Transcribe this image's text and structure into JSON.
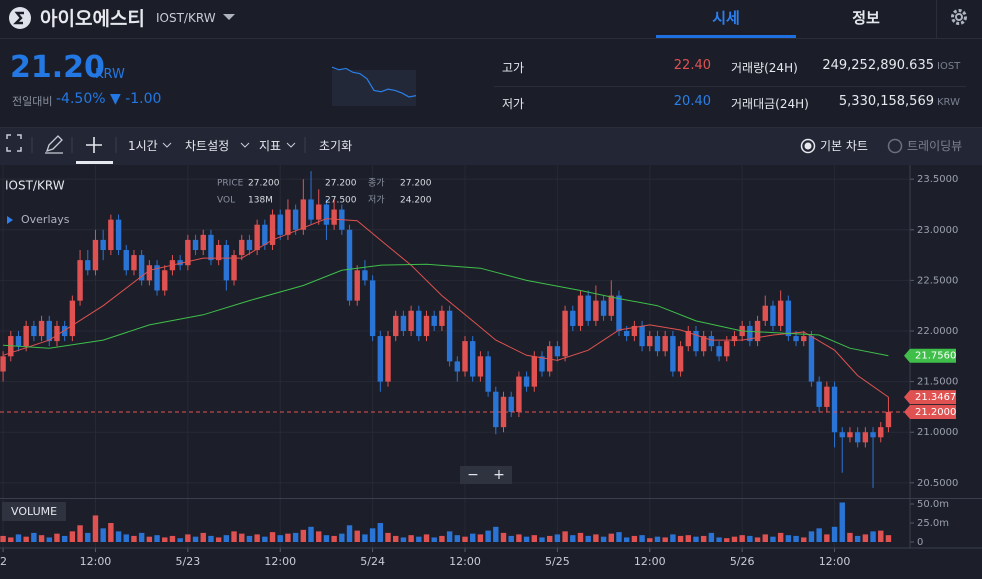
{
  "header": {
    "name": "아이오에스티",
    "pair": "IOST/KRW",
    "tabs": [
      "시세",
      "정보"
    ]
  },
  "summary": {
    "price": "21.20",
    "currency": "KRW",
    "change_label": "전일대비",
    "change_pct": "-4.50%",
    "change_abs": "▼ -1.00"
  },
  "sparkline": {
    "values": [
      23.4,
      23.2,
      23.3,
      23.0,
      22.9,
      22.5,
      21.6,
      21.5,
      21.7,
      21.6,
      21.4,
      21.1,
      21.2
    ],
    "ylim": [
      20.4,
      23.8
    ]
  },
  "stats": {
    "rows": [
      [
        "고가",
        "22.40",
        "거래량(24H)",
        "249,252,890.635",
        "IOST"
      ],
      [
        "저가",
        "20.40",
        "거래대금(24H)",
        "5,330,158,569",
        "KRW"
      ]
    ]
  },
  "toolbar": {
    "interval": "1시간",
    "settings": "차트설정",
    "indicators": "지표",
    "reset": "초기화",
    "basic": "기본 차트",
    "tradingview": "트레이딩뷰"
  },
  "chart_data": {
    "type": "candlestick",
    "pair": "IOST/KRW",
    "overlays": "Overlays",
    "volume_label": "VOLUME",
    "info": [
      [
        "PRICE",
        "27.200",
        "27.200",
        "종가",
        "27.200"
      ],
      [
        "VOL",
        "138M",
        "27.500",
        "저가",
        "24.200"
      ]
    ],
    "zoom": [
      "−",
      "+"
    ],
    "up_color": "#e05252",
    "down_color": "#2a74d5",
    "xlim": [
      -0.4,
      117.8
    ],
    "xticks": [
      {
        "value": 0,
        "label": "2"
      },
      {
        "value": 12,
        "label": "12:00"
      },
      {
        "value": 24,
        "label": "5/23"
      },
      {
        "value": 36,
        "label": "12:00"
      },
      {
        "value": 48,
        "label": "5/24"
      },
      {
        "value": 60,
        "label": "12:00"
      },
      {
        "value": 72,
        "label": "5/25"
      },
      {
        "value": 84,
        "label": "12:00"
      },
      {
        "value": 96,
        "label": "5/26"
      },
      {
        "value": 108,
        "label": "12:00"
      }
    ],
    "ylim": [
      20.36,
      23.64
    ],
    "yticks": [
      {
        "value": 20.5,
        "label": "20.5000"
      },
      {
        "value": 21,
        "label": "21.0000"
      },
      {
        "value": 21.5,
        "label": "21.5000"
      },
      {
        "value": 22,
        "label": "22.0000"
      },
      {
        "value": 22.5,
        "label": "22.5000"
      },
      {
        "value": 23,
        "label": "23.0000"
      },
      {
        "value": 23.5,
        "label": "23.5000"
      }
    ],
    "vol_ylim": [
      -7.9,
      55.3
    ],
    "vol_yticks": [
      0,
      {
        "value": 25,
        "label": "25.0m"
      },
      {
        "value": 50,
        "label": "50.0m"
      }
    ],
    "price_labels": [
      {
        "value": 21.756,
        "label": "21.7560",
        "color": "#3fbf4a"
      },
      {
        "value": 21.3467,
        "label": "21.3467",
        "color": "#e05252"
      },
      {
        "value": 21.2,
        "label": "21.2000",
        "color": "#e05252"
      }
    ],
    "series": [
      {
        "color": "#e0524f",
        "x": [
          0,
          6,
          13,
          19,
          26,
          31,
          35,
          39,
          42,
          46,
          49,
          53,
          57,
          61,
          64,
          68,
          72,
          76,
          80,
          84,
          88,
          92,
          96,
          100,
          104,
          108,
          111,
          115
        ],
        "values": [
          21.76,
          21.91,
          22.25,
          22.6,
          22.72,
          22.72,
          22.9,
          23.02,
          23.11,
          23.09,
          22.9,
          22.65,
          22.35,
          22.1,
          21.91,
          21.76,
          21.71,
          21.81,
          22.01,
          22.06,
          22.01,
          21.91,
          21.91,
          21.96,
          21.99,
          21.81,
          21.56,
          21.3467
        ]
      },
      {
        "color": "#3fbf4a",
        "x": [
          0,
          6,
          13,
          19,
          26,
          32,
          39,
          44,
          49,
          55,
          62,
          68,
          75,
          80,
          85,
          90,
          96,
          101,
          106,
          110,
          115
        ],
        "values": [
          21.86,
          21.83,
          21.91,
          22.06,
          22.16,
          22.3,
          22.45,
          22.6,
          22.65,
          22.66,
          22.62,
          22.5,
          22.4,
          22.32,
          22.25,
          22.1,
          22.0,
          21.98,
          21.96,
          21.83,
          21.756
        ]
      }
    ],
    "candles": [
      [
        21.6,
        21.8,
        21.5,
        21.75
      ],
      [
        21.75,
        22.0,
        21.7,
        21.95
      ],
      [
        21.95,
        22.0,
        21.8,
        21.85
      ],
      [
        21.85,
        22.1,
        21.8,
        22.05
      ],
      [
        22.05,
        22.1,
        21.9,
        21.95
      ],
      [
        21.95,
        22.15,
        21.9,
        22.1
      ],
      [
        22.1,
        22.15,
        21.85,
        21.9
      ],
      [
        21.9,
        22.1,
        21.85,
        22.05
      ],
      [
        22.05,
        22.1,
        21.9,
        21.95
      ],
      [
        21.95,
        22.35,
        21.9,
        22.3
      ],
      [
        22.3,
        22.8,
        22.25,
        22.7
      ],
      [
        22.7,
        22.8,
        22.55,
        22.6
      ],
      [
        22.6,
        23.0,
        22.55,
        22.9
      ],
      [
        22.9,
        23.0,
        22.7,
        22.8
      ],
      [
        22.8,
        23.15,
        22.75,
        23.1
      ],
      [
        23.1,
        23.15,
        22.75,
        22.8
      ],
      [
        22.8,
        22.85,
        22.55,
        22.6
      ],
      [
        22.6,
        22.8,
        22.55,
        22.75
      ],
      [
        22.75,
        22.8,
        22.45,
        22.5
      ],
      [
        22.5,
        22.7,
        22.45,
        22.65
      ],
      [
        22.65,
        22.7,
        22.35,
        22.4
      ],
      [
        22.4,
        22.65,
        22.35,
        22.6
      ],
      [
        22.6,
        22.75,
        22.55,
        22.7
      ],
      [
        22.7,
        22.75,
        22.6,
        22.65
      ],
      [
        22.65,
        22.95,
        22.6,
        22.9
      ],
      [
        22.9,
        22.95,
        22.75,
        22.8
      ],
      [
        22.8,
        23.0,
        22.75,
        22.95
      ],
      [
        22.95,
        23.0,
        22.65,
        22.7
      ],
      [
        22.7,
        22.9,
        22.65,
        22.85
      ],
      [
        22.85,
        22.9,
        22.4,
        22.5
      ],
      [
        22.5,
        22.8,
        22.45,
        22.75
      ],
      [
        22.75,
        22.95,
        22.7,
        22.9
      ],
      [
        22.9,
        22.95,
        22.75,
        22.8
      ],
      [
        22.8,
        23.1,
        22.75,
        23.05
      ],
      [
        23.05,
        23.1,
        22.8,
        22.85
      ],
      [
        22.85,
        23.2,
        22.8,
        23.15
      ],
      [
        23.15,
        23.2,
        22.9,
        22.95
      ],
      [
        22.95,
        23.3,
        22.9,
        23.2
      ],
      [
        23.2,
        23.25,
        22.95,
        23.0
      ],
      [
        23.0,
        23.5,
        22.95,
        23.3
      ],
      [
        23.3,
        23.58,
        23.05,
        23.1
      ],
      [
        23.1,
        23.4,
        23.05,
        23.25
      ],
      [
        23.25,
        23.3,
        22.9,
        23.05
      ],
      [
        23.05,
        23.3,
        23.0,
        23.2
      ],
      [
        23.2,
        23.25,
        22.95,
        23.0
      ],
      [
        23.0,
        23.05,
        22.25,
        22.3
      ],
      [
        22.3,
        22.65,
        22.25,
        22.6
      ],
      [
        22.6,
        22.7,
        22.45,
        22.5
      ],
      [
        22.5,
        22.55,
        21.9,
        21.95
      ],
      [
        21.95,
        22.0,
        21.4,
        21.5
      ],
      [
        21.5,
        22.0,
        21.45,
        21.95
      ],
      [
        21.95,
        22.2,
        21.9,
        22.15
      ],
      [
        22.15,
        22.2,
        21.95,
        22.0
      ],
      [
        22.0,
        22.25,
        21.95,
        22.2
      ],
      [
        22.2,
        22.25,
        21.9,
        21.95
      ],
      [
        21.95,
        22.2,
        21.9,
        22.15
      ],
      [
        22.15,
        22.2,
        22.0,
        22.05
      ],
      [
        22.05,
        22.25,
        22.0,
        22.2
      ],
      [
        22.2,
        22.25,
        21.65,
        21.7
      ],
      [
        21.7,
        21.75,
        21.5,
        21.6
      ],
      [
        21.6,
        21.95,
        21.55,
        21.9
      ],
      [
        21.9,
        21.95,
        21.5,
        21.55
      ],
      [
        21.55,
        21.8,
        21.5,
        21.75
      ],
      [
        21.75,
        21.8,
        21.35,
        21.4
      ],
      [
        21.4,
        21.45,
        20.98,
        21.05
      ],
      [
        21.05,
        21.4,
        21.0,
        21.35
      ],
      [
        21.35,
        21.4,
        21.15,
        21.2
      ],
      [
        21.2,
        21.6,
        21.15,
        21.55
      ],
      [
        21.55,
        21.6,
        21.4,
        21.45
      ],
      [
        21.45,
        21.8,
        21.4,
        21.75
      ],
      [
        21.75,
        21.8,
        21.55,
        21.6
      ],
      [
        21.6,
        21.9,
        21.55,
        21.85
      ],
      [
        21.85,
        21.9,
        21.7,
        21.75
      ],
      [
        21.75,
        22.25,
        21.7,
        22.2
      ],
      [
        22.2,
        22.25,
        22.0,
        22.05
      ],
      [
        22.05,
        22.4,
        22.0,
        22.35
      ],
      [
        22.35,
        22.4,
        22.05,
        22.1
      ],
      [
        22.1,
        22.45,
        22.05,
        22.3
      ],
      [
        22.3,
        22.35,
        22.1,
        22.15
      ],
      [
        22.15,
        22.5,
        22.1,
        22.35
      ],
      [
        22.35,
        22.4,
        21.95,
        22.0
      ],
      [
        22.0,
        22.05,
        21.9,
        21.95
      ],
      [
        21.95,
        22.1,
        21.9,
        22.05
      ],
      [
        22.05,
        22.1,
        21.8,
        21.85
      ],
      [
        21.85,
        22.0,
        21.8,
        21.95
      ],
      [
        21.95,
        22.0,
        21.75,
        21.8
      ],
      [
        21.8,
        22.0,
        21.75,
        21.95
      ],
      [
        21.95,
        22.0,
        21.55,
        21.6
      ],
      [
        21.6,
        21.9,
        21.55,
        21.85
      ],
      [
        21.85,
        22.05,
        21.8,
        22.0
      ],
      [
        22.0,
        22.05,
        21.75,
        21.8
      ],
      [
        21.8,
        22.0,
        21.75,
        21.95
      ],
      [
        21.95,
        22.0,
        21.8,
        21.85
      ],
      [
        21.85,
        21.9,
        21.7,
        21.75
      ],
      [
        21.75,
        21.95,
        21.7,
        21.9
      ],
      [
        21.9,
        22.0,
        21.85,
        21.95
      ],
      [
        21.95,
        22.1,
        21.9,
        22.05
      ],
      [
        22.05,
        22.1,
        21.85,
        21.9
      ],
      [
        21.9,
        22.15,
        21.85,
        22.1
      ],
      [
        22.1,
        22.35,
        22.05,
        22.25
      ],
      [
        22.25,
        22.3,
        22.0,
        22.05
      ],
      [
        22.05,
        22.4,
        22.0,
        22.3
      ],
      [
        22.3,
        22.35,
        21.9,
        21.95
      ],
      [
        21.95,
        22.0,
        21.85,
        21.9
      ],
      [
        21.9,
        22.0,
        21.85,
        21.95
      ],
      [
        21.95,
        22.0,
        21.45,
        21.5
      ],
      [
        21.5,
        21.55,
        21.2,
        21.25
      ],
      [
        21.25,
        21.5,
        21.2,
        21.45
      ],
      [
        21.45,
        21.5,
        20.85,
        21.0
      ],
      [
        21.0,
        21.05,
        20.6,
        20.95
      ],
      [
        20.95,
        21.05,
        20.9,
        21.0
      ],
      [
        21.0,
        21.05,
        20.85,
        20.9
      ],
      [
        20.9,
        21.05,
        20.85,
        21.0
      ],
      [
        21.0,
        21.05,
        20.45,
        20.95
      ],
      [
        20.95,
        21.1,
        20.9,
        21.05
      ],
      [
        21.05,
        21.35,
        21.0,
        21.2
      ]
    ],
    "volumes": [
      8,
      6,
      10,
      7,
      12,
      9,
      6,
      11,
      8,
      14,
      22,
      12,
      35,
      18,
      25,
      14,
      10,
      8,
      12,
      7,
      9,
      6,
      8,
      5,
      10,
      7,
      12,
      8,
      6,
      9,
      14,
      11,
      8,
      10,
      7,
      13,
      9,
      11,
      12,
      16,
      20,
      14,
      9,
      8,
      11,
      22,
      15,
      10,
      18,
      25,
      12,
      8,
      6,
      9,
      7,
      10,
      6,
      8,
      14,
      9,
      7,
      11,
      10,
      15,
      20,
      12,
      8,
      10,
      7,
      9,
      6,
      8,
      10,
      14,
      9,
      12,
      8,
      10,
      7,
      11,
      13,
      6,
      8,
      9,
      5,
      7,
      6,
      10,
      8,
      9,
      7,
      8,
      12,
      6,
      5,
      7,
      9,
      8,
      6,
      10,
      7,
      12,
      9,
      8,
      6,
      14,
      18,
      10,
      20,
      52,
      12,
      8,
      10,
      14,
      15,
      9
    ]
  }
}
